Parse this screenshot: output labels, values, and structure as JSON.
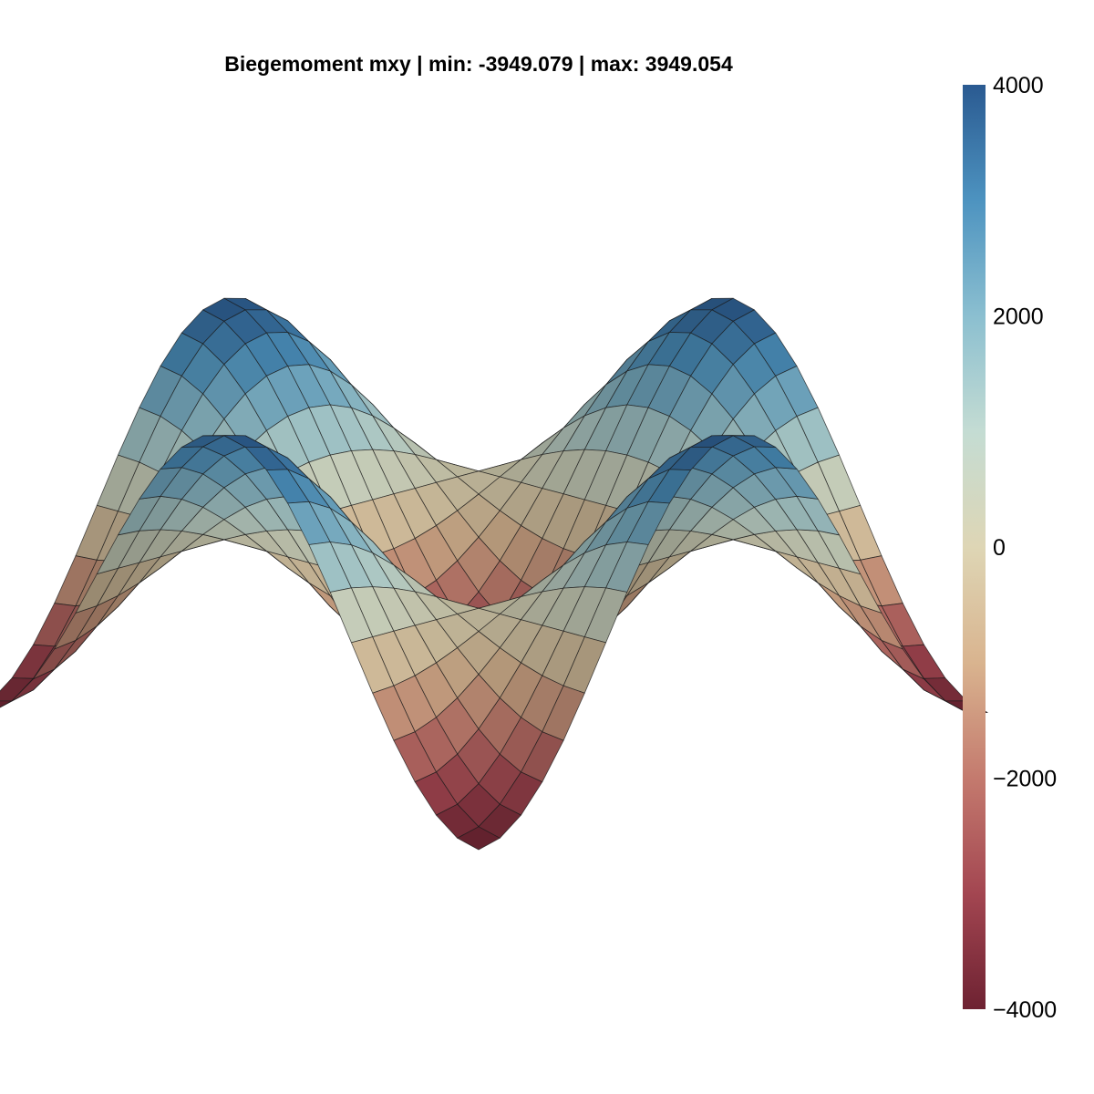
{
  "chart_data": {
    "type": "surface",
    "title": "Biegemoment mxy | min: -3949.079 | max: 3949.054",
    "value_min": -3949.079,
    "value_max": 3949.054,
    "function": "z = max * sin(pi*x) * sin(pi*y) over the quarter-shifted plate domain, i.e. z(u,v) = -max * cos(pi*u) * cos(pi*v) for u,v in [-1, 1]",
    "grid": {
      "u_range": [
        -1,
        1
      ],
      "v_range": [
        -1,
        1
      ],
      "u_steps": 24,
      "v_steps": 24
    },
    "grid_visible": false,
    "colorbar": {
      "range": [
        -4000,
        4000
      ],
      "ticks": [
        4000,
        2000,
        0,
        -2000,
        -4000
      ],
      "tick_labels": [
        "4000",
        "2000",
        "0",
        "−2000",
        "−4000"
      ],
      "placement": "right",
      "colormap": [
        "#6e2232",
        "#a34651",
        "#c47a6e",
        "#d9b48f",
        "#ded6b5",
        "#c4dcd3",
        "#8bbfd0",
        "#4d93c0",
        "#2a5a91"
      ]
    }
  }
}
